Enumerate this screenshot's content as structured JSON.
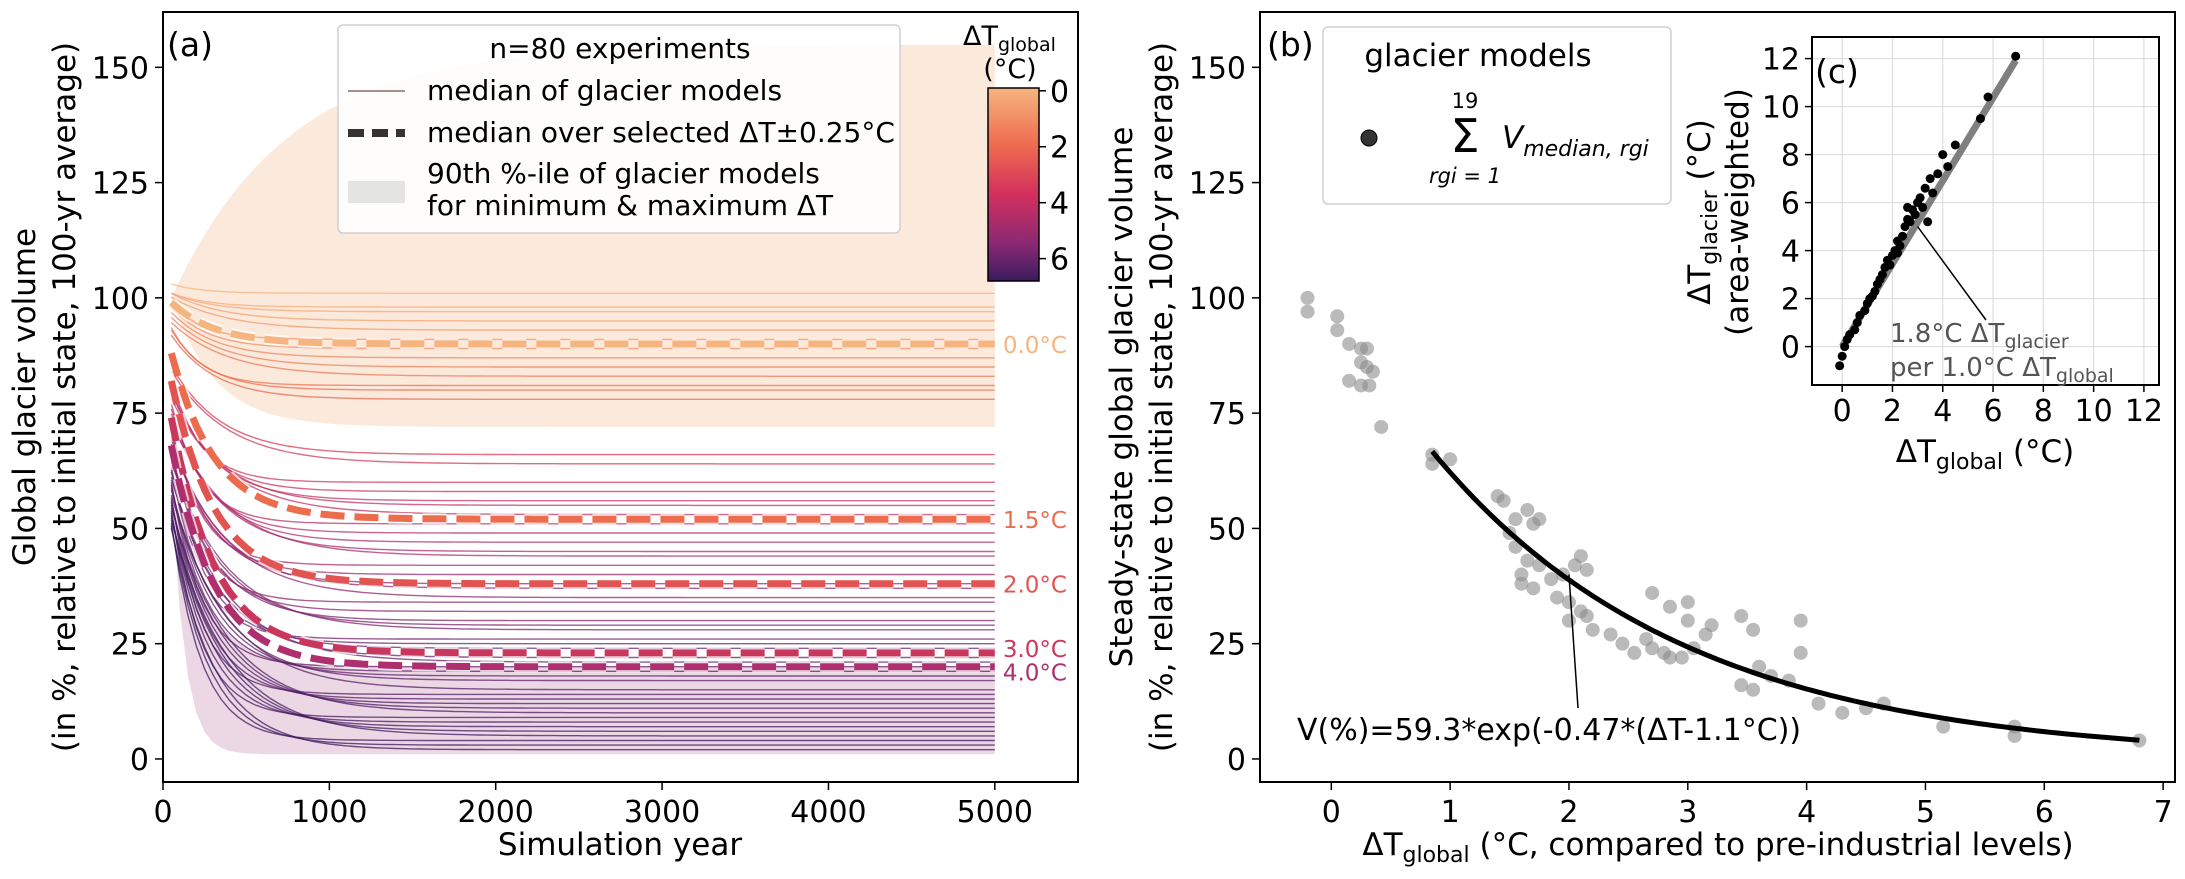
{
  "panel_a": {
    "letter": "(a)",
    "xlabel": "Simulation year",
    "ylabel_line1": "Global glacier volume",
    "ylabel_line2": "(in %, relative to initial state, 100-yr average)",
    "xticks": [
      0,
      1000,
      2000,
      3000,
      4000,
      5000
    ],
    "yticks": [
      0,
      25,
      50,
      75,
      100,
      125,
      150
    ],
    "legend": {
      "title": "n=80 experiments",
      "item1": "median of glacier models",
      "item2": "median over selected ΔT±0.25°C",
      "item3_line1": "90th %-ile of glacier models",
      "item3_line2": "for minimum & maximum ΔT"
    },
    "colorbar": {
      "title_main": "ΔT",
      "title_sub": "global",
      "unit": "(°C)",
      "ticks": [
        0,
        2,
        4,
        6
      ]
    },
    "line_labels": [
      "0.0°C",
      "1.5°C",
      "2.0°C",
      "3.0°C",
      "4.0°C"
    ]
  },
  "panel_b": {
    "letter": "(b)",
    "ylabel_line1": "Steady-state global glacier volume",
    "ylabel_line2": "(in %, relative to initial state, 100-yr average)",
    "xlabel_main": "ΔT",
    "xlabel_sub": "global",
    "xlabel_rest": " (°C, compared to pre-industrial levels)",
    "xticks": [
      0,
      1,
      2,
      3,
      4,
      5,
      6,
      7
    ],
    "yticks": [
      0,
      25,
      50,
      75,
      100,
      125,
      150
    ],
    "legend_title": "glacier models",
    "legend_sum_top": "19",
    "legend_sum_bottom": "rgi = 1",
    "legend_term": "V",
    "legend_term_sub": "median, rgi",
    "fit_label": "V(%)=59.3*exp(-0.47*(ΔT-1.1°C))"
  },
  "panel_c": {
    "letter": "(c)",
    "ylabel_main": "ΔT",
    "ylabel_sub": "glacier",
    "ylabel_rest": " (°C)",
    "ylabel_line2": "(area-weighted)",
    "xlabel_main": "ΔT",
    "xlabel_sub": "global",
    "xlabel_rest": " (°C)",
    "ticks": [
      0,
      2,
      4,
      6,
      8,
      10,
      12
    ],
    "ann_line1_a": "1.8°C ΔT",
    "ann_line1_sub": "glacier",
    "ann_line2_a": "per 1.0°C ΔT",
    "ann_line2_sub": "global"
  },
  "chart_data": [
    {
      "type": "line",
      "panel": "a",
      "x_range": [
        0,
        5000
      ],
      "xlim": [
        0,
        5500
      ],
      "ylim": [
        -5,
        162
      ],
      "selected_medians": [
        {
          "dT": 0.0,
          "initial": 99,
          "final": 90
        },
        {
          "dT": 1.5,
          "initial": 88,
          "final": 52
        },
        {
          "dT": 2.0,
          "initial": 82,
          "final": 38
        },
        {
          "dT": 3.0,
          "initial": 74,
          "final": 23
        },
        {
          "dT": 4.0,
          "initial": 68,
          "final": 20
        }
      ],
      "experiment_finals": [
        101,
        98,
        97,
        95,
        93,
        91,
        89,
        87,
        85,
        83,
        81,
        80,
        78,
        66,
        64,
        60,
        58,
        56,
        55,
        53,
        51,
        49,
        47,
        45,
        44,
        42,
        40,
        38,
        37,
        35,
        34,
        32,
        30,
        29,
        28,
        26,
        25,
        24,
        22,
        21,
        20,
        19,
        18,
        17,
        15,
        14,
        13,
        12,
        11,
        10,
        9,
        8,
        7,
        6,
        5,
        4,
        3,
        2
      ],
      "band_min_dT": {
        "upper": 155,
        "lower": 72
      },
      "band_max_dT": {
        "upper": 20,
        "lower": 1
      }
    },
    {
      "type": "scatter",
      "panel": "b",
      "xlim": [
        -0.6,
        7.1
      ],
      "ylim": [
        -5,
        162
      ],
      "points": [
        [
          -0.2,
          100
        ],
        [
          -0.2,
          97
        ],
        [
          0.05,
          96
        ],
        [
          0.05,
          93
        ],
        [
          0.15,
          90
        ],
        [
          0.25,
          89
        ],
        [
          0.3,
          89
        ],
        [
          0.25,
          86
        ],
        [
          0.3,
          85
        ],
        [
          0.35,
          84
        ],
        [
          0.15,
          82
        ],
        [
          0.25,
          81
        ],
        [
          0.32,
          81
        ],
        [
          0.42,
          72
        ],
        [
          0.85,
          66
        ],
        [
          0.85,
          64
        ],
        [
          1.0,
          65
        ],
        [
          1.4,
          57
        ],
        [
          1.45,
          56
        ],
        [
          1.55,
          52
        ],
        [
          1.65,
          54
        ],
        [
          1.7,
          51
        ],
        [
          1.75,
          52
        ],
        [
          1.5,
          49
        ],
        [
          1.55,
          46
        ],
        [
          1.65,
          43
        ],
        [
          1.75,
          42
        ],
        [
          1.6,
          40
        ],
        [
          1.6,
          38
        ],
        [
          1.7,
          37
        ],
        [
          1.85,
          39
        ],
        [
          1.95,
          40
        ],
        [
          2.05,
          42
        ],
        [
          2.1,
          44
        ],
        [
          2.15,
          41
        ],
        [
          1.9,
          35
        ],
        [
          2.0,
          34
        ],
        [
          2.1,
          32
        ],
        [
          2.15,
          31
        ],
        [
          2.0,
          30
        ],
        [
          2.2,
          28
        ],
        [
          2.35,
          27
        ],
        [
          2.45,
          25
        ],
        [
          2.55,
          23
        ],
        [
          2.65,
          26
        ],
        [
          2.7,
          24
        ],
        [
          2.8,
          23
        ],
        [
          2.85,
          22
        ],
        [
          2.95,
          22
        ],
        [
          3.05,
          24
        ],
        [
          2.7,
          36
        ],
        [
          2.85,
          33
        ],
        [
          3.0,
          34
        ],
        [
          3.0,
          30
        ],
        [
          3.2,
          29
        ],
        [
          3.15,
          27
        ],
        [
          3.45,
          31
        ],
        [
          3.55,
          28
        ],
        [
          3.6,
          20
        ],
        [
          3.7,
          18
        ],
        [
          3.85,
          17
        ],
        [
          3.45,
          16
        ],
        [
          3.55,
          15
        ],
        [
          3.95,
          30
        ],
        [
          3.95,
          23
        ],
        [
          4.1,
          12
        ],
        [
          4.3,
          10
        ],
        [
          4.5,
          11
        ],
        [
          4.65,
          12
        ],
        [
          5.15,
          7
        ],
        [
          5.75,
          7
        ],
        [
          5.75,
          5
        ],
        [
          6.8,
          4
        ]
      ],
      "fit": {
        "a": 59.3,
        "b": -0.47,
        "offset": 1.1,
        "x_range": [
          0.85,
          6.82
        ]
      },
      "annotation_point": [
        2.0,
        40
      ]
    },
    {
      "type": "scatter",
      "panel": "c",
      "xlim": [
        -1.2,
        12.6
      ],
      "ylim": [
        -1.6,
        12.9
      ],
      "slope": 1.8,
      "points": [
        [
          -0.1,
          -0.8
        ],
        [
          0,
          -0.4
        ],
        [
          0.1,
          0
        ],
        [
          0.2,
          0.3
        ],
        [
          0.3,
          0.5
        ],
        [
          0.5,
          0.7
        ],
        [
          0.6,
          1.0
        ],
        [
          0.7,
          1.3
        ],
        [
          0.9,
          1.5
        ],
        [
          1.0,
          1.8
        ],
        [
          1.1,
          2.0
        ],
        [
          1.3,
          2.3
        ],
        [
          1.4,
          2.6
        ],
        [
          1.5,
          2.8
        ],
        [
          1.6,
          3.0
        ],
        [
          1.7,
          3.3
        ],
        [
          1.8,
          3.6
        ],
        [
          1.9,
          3.4
        ],
        [
          2.0,
          3.8
        ],
        [
          2.1,
          4.0
        ],
        [
          2.2,
          4.4
        ],
        [
          2.3,
          4.2
        ],
        [
          2.4,
          4.6
        ],
        [
          2.5,
          5.0
        ],
        [
          2.6,
          5.3
        ],
        [
          2.7,
          5.2
        ],
        [
          2.8,
          5.7
        ],
        [
          2.9,
          5.5
        ],
        [
          3.0,
          6.0
        ],
        [
          3.1,
          6.2
        ],
        [
          3.2,
          5.8
        ],
        [
          3.3,
          6.6
        ],
        [
          3.5,
          7.0
        ],
        [
          3.6,
          6.4
        ],
        [
          3.8,
          7.2
        ],
        [
          4.0,
          8.0
        ],
        [
          4.2,
          7.5
        ],
        [
          4.5,
          8.4
        ],
        [
          5.5,
          9.5
        ],
        [
          5.8,
          10.4
        ],
        [
          6.9,
          12.1
        ],
        [
          2.6,
          5.8
        ],
        [
          2.2,
          3.9
        ],
        [
          1.2,
          2.1
        ],
        [
          3.4,
          5.2
        ]
      ],
      "annotation_point": [
        3.0,
        5.0
      ]
    }
  ]
}
